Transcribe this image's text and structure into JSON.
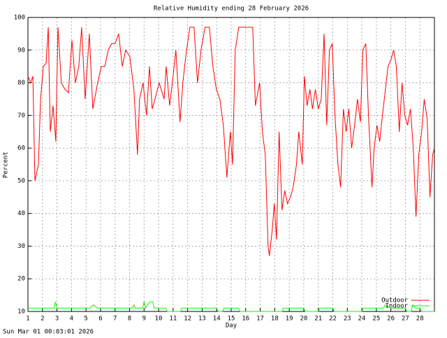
{
  "chart_data": {
    "type": "line",
    "title": "Relative Humidity ending 28 February 2026",
    "xlabel": "Day",
    "ylabel": "Percent",
    "timestamp": "Sun Mar 01 00:03:01 2026",
    "xlim": [
      1,
      29
    ],
    "ylim": [
      10,
      100
    ],
    "xticks": [
      1,
      2,
      3,
      4,
      5,
      6,
      7,
      8,
      9,
      10,
      11,
      12,
      13,
      14,
      15,
      16,
      17,
      18,
      19,
      20,
      21,
      22,
      23,
      24,
      25,
      26,
      27,
      28
    ],
    "yticks": [
      10,
      20,
      30,
      40,
      50,
      60,
      70,
      80,
      90,
      100
    ],
    "grid": true,
    "legend": "bottom-right",
    "series": [
      {
        "name": "Outdoor",
        "color": "#ff0000",
        "x": [
          1,
          1.19,
          1.34,
          1.48,
          1.72,
          1.87,
          2.06,
          2.25,
          2.4,
          2.54,
          2.73,
          2.92,
          3.07,
          3.3,
          3.55,
          3.79,
          4.03,
          4.27,
          4.5,
          4.7,
          4.94,
          5.23,
          5.47,
          5.8,
          6.05,
          6.29,
          6.53,
          6.77,
          7.0,
          7.25,
          7.5,
          7.73,
          8.02,
          8.3,
          8.55,
          8.69,
          8.93,
          9.17,
          9.37,
          9.56,
          9.75,
          10.04,
          10.38,
          10.52,
          10.76,
          10.95,
          11.19,
          11.48,
          11.67,
          11.87,
          12.15,
          12.44,
          12.68,
          12.92,
          13.2,
          13.5,
          13.74,
          13.98,
          14.22,
          14.46,
          14.7,
          14.94,
          15.09,
          15.28,
          15.52,
          16.0,
          16.48,
          16.67,
          16.96,
          17.15,
          17.35,
          17.54,
          17.63,
          17.83,
          17.97,
          18.12,
          18.3,
          18.5,
          18.69,
          18.88,
          19.08,
          19.27,
          19.5,
          19.65,
          19.9,
          20.04,
          20.23,
          20.42,
          20.6,
          20.8,
          21.0,
          21.2,
          21.4,
          21.58,
          21.77,
          21.96,
          22.15,
          22.35,
          22.54,
          22.73,
          22.92,
          23.1,
          23.3,
          23.5,
          23.7,
          23.9,
          24.07,
          24.27,
          24.46,
          24.7,
          24.85,
          25.04,
          25.23,
          25.42,
          25.6,
          25.8,
          26.0,
          26.19,
          26.38,
          26.58,
          26.77,
          26.96,
          27.15,
          27.35,
          27.54,
          27.73,
          27.92,
          28.12,
          28.3,
          28.5,
          28.69,
          28.88,
          29
        ],
        "values": [
          82,
          80,
          82,
          50,
          55,
          75,
          85,
          86,
          97,
          65,
          73,
          62,
          97,
          80,
          78,
          77,
          93,
          80,
          85,
          97,
          75,
          95,
          72,
          80,
          85,
          85,
          90,
          92,
          92,
          95,
          85,
          90,
          88,
          78,
          58,
          75,
          80,
          70,
          85,
          72,
          75,
          80,
          75,
          85,
          73,
          80,
          90,
          68,
          80,
          88,
          97,
          97,
          80,
          90,
          97,
          97,
          85,
          78,
          75,
          67,
          51,
          65,
          55,
          90,
          97,
          97,
          97,
          73,
          80,
          65,
          58,
          30,
          27,
          35,
          43,
          32,
          65,
          41,
          47,
          43,
          45,
          48,
          55,
          65,
          55,
          82,
          73,
          78,
          72,
          78,
          72,
          75,
          95,
          67,
          90,
          92,
          70,
          55,
          48,
          72,
          65,
          72,
          60,
          67,
          75,
          68,
          90,
          92,
          70,
          48,
          60,
          67,
          62,
          70,
          77,
          85,
          87,
          90,
          85,
          65,
          80,
          70,
          67,
          72,
          60,
          39,
          58,
          65,
          75,
          69,
          45,
          58,
          60
        ]
      },
      {
        "name": "Indoor",
        "color": "#00ff00",
        "x": [
          1,
          2.8,
          2.9,
          3,
          5.3,
          5.5,
          5.8,
          8.2,
          8.3,
          8.4,
          8.9,
          9,
          9.1,
          9.4,
          9.6,
          9.7,
          10.5,
          10.6,
          11.5,
          11.6,
          14,
          14.1,
          14.4,
          14.5,
          15.5,
          15.6,
          18.5,
          18.6,
          20,
          20.1,
          21,
          21.1,
          22,
          22.1,
          24,
          24.1,
          25.5,
          25.6,
          26,
          27,
          27.1,
          27.4,
          27.5,
          27.7,
          28,
          28.1,
          29
        ],
        "values": [
          11,
          11,
          13,
          11,
          11,
          12,
          11,
          11,
          12,
          11,
          11,
          13,
          11,
          13,
          13,
          11,
          11,
          10,
          10,
          11,
          11,
          10,
          10,
          11,
          11,
          10,
          10,
          11,
          11,
          10,
          10,
          11,
          11,
          10,
          10,
          11,
          11,
          12,
          11,
          11,
          10,
          10,
          12,
          11,
          11,
          10,
          10
        ]
      }
    ]
  }
}
